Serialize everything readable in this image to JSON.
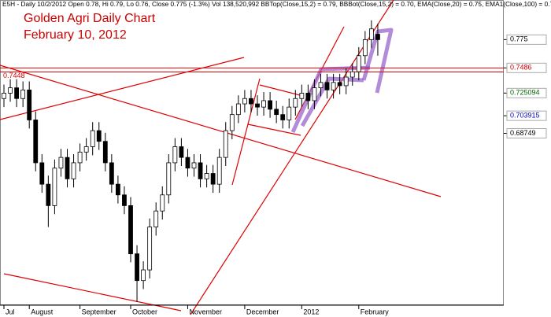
{
  "chart_data": {
    "type": "candlestick",
    "header": "E5H - Daily 10/2/2012 Open 0.78, Hi 0.79, Lo 0.76, Close 0.775 (-1.3%) Vol 138,520,992 BBTop(Close,15,2) = 0.79, BBBot(Close,15,2) = 0.70, EMA(Close,20) = 0.75, EMA1(Close,100) = 0.70",
    "title": "Golden Agri Daily Chart",
    "subtitle": "February 10, 2012",
    "categories": [
      "Jul",
      null,
      null,
      null,
      "August",
      null,
      null,
      null,
      null,
      null,
      null,
      null,
      "September",
      null,
      null,
      null,
      null,
      null,
      null,
      null,
      "October",
      null,
      null,
      null,
      null,
      null,
      null,
      null,
      null,
      "November",
      null,
      null,
      null,
      null,
      null,
      null,
      null,
      null,
      "December",
      null,
      null,
      null,
      null,
      null,
      null,
      null,
      null,
      "2012",
      null,
      null,
      null,
      null,
      null,
      null,
      null,
      null,
      "February",
      null,
      null,
      null
    ],
    "open": [
      0.72,
      0.725,
      0.73,
      0.72,
      0.728,
      0.7,
      0.66,
      0.64,
      0.62,
      0.655,
      0.665,
      0.645,
      0.66,
      0.67,
      0.675,
      0.69,
      0.68,
      0.66,
      0.64,
      0.63,
      0.62,
      0.575,
      0.55,
      0.56,
      0.6,
      0.615,
      0.63,
      0.66,
      0.675,
      0.665,
      0.655,
      0.66,
      0.645,
      0.65,
      0.64,
      0.665,
      0.69,
      0.705,
      0.715,
      0.72,
      0.715,
      0.712,
      0.718,
      0.71,
      0.705,
      0.7,
      0.712,
      0.72,
      0.725,
      0.718,
      0.73,
      0.735,
      0.728,
      0.735,
      0.732,
      0.74,
      0.745,
      0.76,
      0.775,
      0.78
    ],
    "high": [
      0.733,
      0.738,
      0.738,
      0.736,
      0.736,
      0.708,
      0.668,
      0.648,
      0.663,
      0.673,
      0.673,
      0.668,
      0.678,
      0.683,
      0.698,
      0.698,
      0.688,
      0.668,
      0.648,
      0.638,
      0.628,
      0.583,
      0.568,
      0.608,
      0.623,
      0.638,
      0.668,
      0.683,
      0.683,
      0.673,
      0.668,
      0.668,
      0.658,
      0.658,
      0.673,
      0.698,
      0.713,
      0.723,
      0.728,
      0.728,
      0.723,
      0.726,
      0.726,
      0.718,
      0.713,
      0.72,
      0.728,
      0.733,
      0.733,
      0.738,
      0.743,
      0.743,
      0.743,
      0.743,
      0.748,
      0.753,
      0.768,
      0.783,
      0.793,
      0.79
    ],
    "low": [
      0.712,
      0.717,
      0.712,
      0.712,
      0.692,
      0.652,
      0.632,
      0.6,
      0.612,
      0.647,
      0.637,
      0.637,
      0.652,
      0.662,
      0.667,
      0.672,
      0.652,
      0.632,
      0.622,
      0.612,
      0.567,
      0.53,
      0.542,
      0.552,
      0.592,
      0.607,
      0.622,
      0.652,
      0.657,
      0.647,
      0.647,
      0.637,
      0.637,
      0.632,
      0.632,
      0.657,
      0.682,
      0.697,
      0.707,
      0.707,
      0.704,
      0.704,
      0.702,
      0.697,
      0.692,
      0.692,
      0.704,
      0.712,
      0.71,
      0.71,
      0.722,
      0.72,
      0.72,
      0.724,
      0.724,
      0.732,
      0.737,
      0.752,
      0.767,
      0.76
    ],
    "close": [
      0.725,
      0.73,
      0.72,
      0.728,
      0.7,
      0.66,
      0.64,
      0.62,
      0.655,
      0.665,
      0.645,
      0.66,
      0.67,
      0.675,
      0.69,
      0.68,
      0.66,
      0.64,
      0.63,
      0.62,
      0.575,
      0.55,
      0.56,
      0.6,
      0.615,
      0.63,
      0.66,
      0.675,
      0.665,
      0.655,
      0.66,
      0.645,
      0.65,
      0.64,
      0.665,
      0.69,
      0.705,
      0.715,
      0.72,
      0.715,
      0.712,
      0.718,
      0.71,
      0.705,
      0.7,
      0.712,
      0.72,
      0.725,
      0.718,
      0.73,
      0.735,
      0.728,
      0.735,
      0.732,
      0.74,
      0.745,
      0.76,
      0.775,
      0.785,
      0.775
    ],
    "ylim": [
      0.527,
      0.812
    ],
    "yticks": [
      0.775,
      0.7486,
      0.725094,
      0.703915,
      0.68749
    ],
    "ytick_colors": [
      "#000000",
      "#cc0000",
      "#006600",
      "#0000cc",
      "#000000"
    ],
    "hlines": [
      0.7448,
      0.7486
    ],
    "hline_color": "#dd0000"
  }
}
